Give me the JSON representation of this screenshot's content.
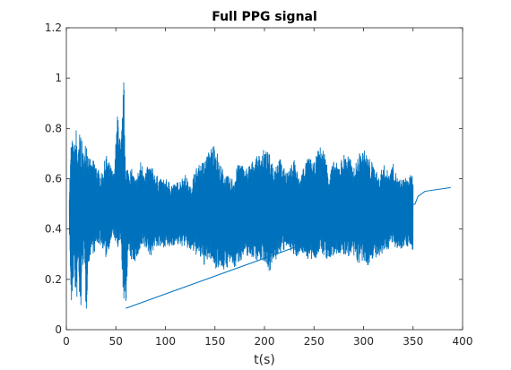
{
  "chart_data": {
    "type": "line",
    "title": "Full PPG signal",
    "xlabel": "t(s)",
    "ylabel": "",
    "xlim": [
      0,
      400
    ],
    "ylim": [
      0,
      1.2
    ],
    "xticks": [
      0,
      50,
      100,
      150,
      200,
      250,
      300,
      350,
      400
    ],
    "yticks": [
      0,
      0.2,
      0.4,
      0.6,
      0.8,
      1,
      1.2
    ],
    "xtick_labels": [
      "0",
      "50",
      "100",
      "150",
      "200",
      "250",
      "300",
      "350",
      "400"
    ],
    "ytick_labels": [
      "0",
      "0.2",
      "0.4",
      "0.6",
      "0.8",
      "1",
      "1.2"
    ],
    "grid": false,
    "legend": "none",
    "series_color": "#0072BD",
    "series": [
      {
        "envelope_t": [
          3,
          5,
          8,
          10,
          12,
          14,
          16,
          18,
          20,
          22,
          25,
          28,
          32,
          36,
          40,
          45,
          48,
          52,
          55,
          58,
          60,
          62,
          66,
          70,
          75,
          80,
          85,
          90,
          95,
          100,
          105,
          110,
          115,
          120,
          125,
          130,
          135,
          140,
          145,
          150,
          155,
          160,
          165,
          170,
          175,
          180,
          185,
          190,
          195,
          200,
          205,
          210,
          215,
          220,
          225,
          230,
          235,
          240,
          245,
          250,
          255,
          260,
          265,
          270,
          275,
          280,
          285,
          290,
          295,
          300,
          305,
          310,
          315,
          320,
          325,
          330,
          335,
          340,
          345,
          350
        ],
        "envelope_upper": [
          0.55,
          0.78,
          0.72,
          0.81,
          0.7,
          0.82,
          0.74,
          0.68,
          0.79,
          0.72,
          0.66,
          0.68,
          0.64,
          0.62,
          0.7,
          0.65,
          0.62,
          0.88,
          0.72,
          1.0,
          0.67,
          0.65,
          0.64,
          0.6,
          0.67,
          0.64,
          0.66,
          0.62,
          0.6,
          0.6,
          0.59,
          0.58,
          0.6,
          0.62,
          0.57,
          0.64,
          0.66,
          0.68,
          0.72,
          0.75,
          0.66,
          0.63,
          0.6,
          0.62,
          0.68,
          0.64,
          0.66,
          0.68,
          0.7,
          0.72,
          0.7,
          0.66,
          0.69,
          0.64,
          0.63,
          0.69,
          0.6,
          0.66,
          0.69,
          0.66,
          0.73,
          0.72,
          0.63,
          0.67,
          0.66,
          0.7,
          0.7,
          0.64,
          0.7,
          0.72,
          0.69,
          0.66,
          0.61,
          0.66,
          0.63,
          0.66,
          0.6,
          0.6,
          0.61,
          0.62
        ],
        "envelope_lower": [
          0.4,
          0.06,
          0.25,
          0.04,
          0.28,
          0.0,
          0.22,
          0.3,
          0.05,
          0.24,
          0.31,
          0.3,
          0.34,
          0.33,
          0.28,
          0.35,
          0.37,
          0.3,
          0.33,
          0.1,
          0.05,
          0.3,
          0.27,
          0.27,
          0.31,
          0.32,
          0.29,
          0.33,
          0.32,
          0.33,
          0.32,
          0.34,
          0.33,
          0.33,
          0.31,
          0.3,
          0.28,
          0.25,
          0.28,
          0.24,
          0.25,
          0.23,
          0.26,
          0.24,
          0.27,
          0.29,
          0.29,
          0.28,
          0.27,
          0.27,
          0.23,
          0.26,
          0.3,
          0.31,
          0.33,
          0.28,
          0.3,
          0.3,
          0.27,
          0.27,
          0.3,
          0.29,
          0.27,
          0.29,
          0.3,
          0.29,
          0.29,
          0.28,
          0.26,
          0.26,
          0.25,
          0.29,
          0.27,
          0.3,
          0.32,
          0.34,
          0.31,
          0.33,
          0.33,
          0.31
        ],
        "segment_t": [
          60,
          352,
          355,
          362,
          388
        ],
        "segment_y": [
          0.085,
          0.5,
          0.53,
          0.55,
          0.565
        ]
      }
    ]
  }
}
